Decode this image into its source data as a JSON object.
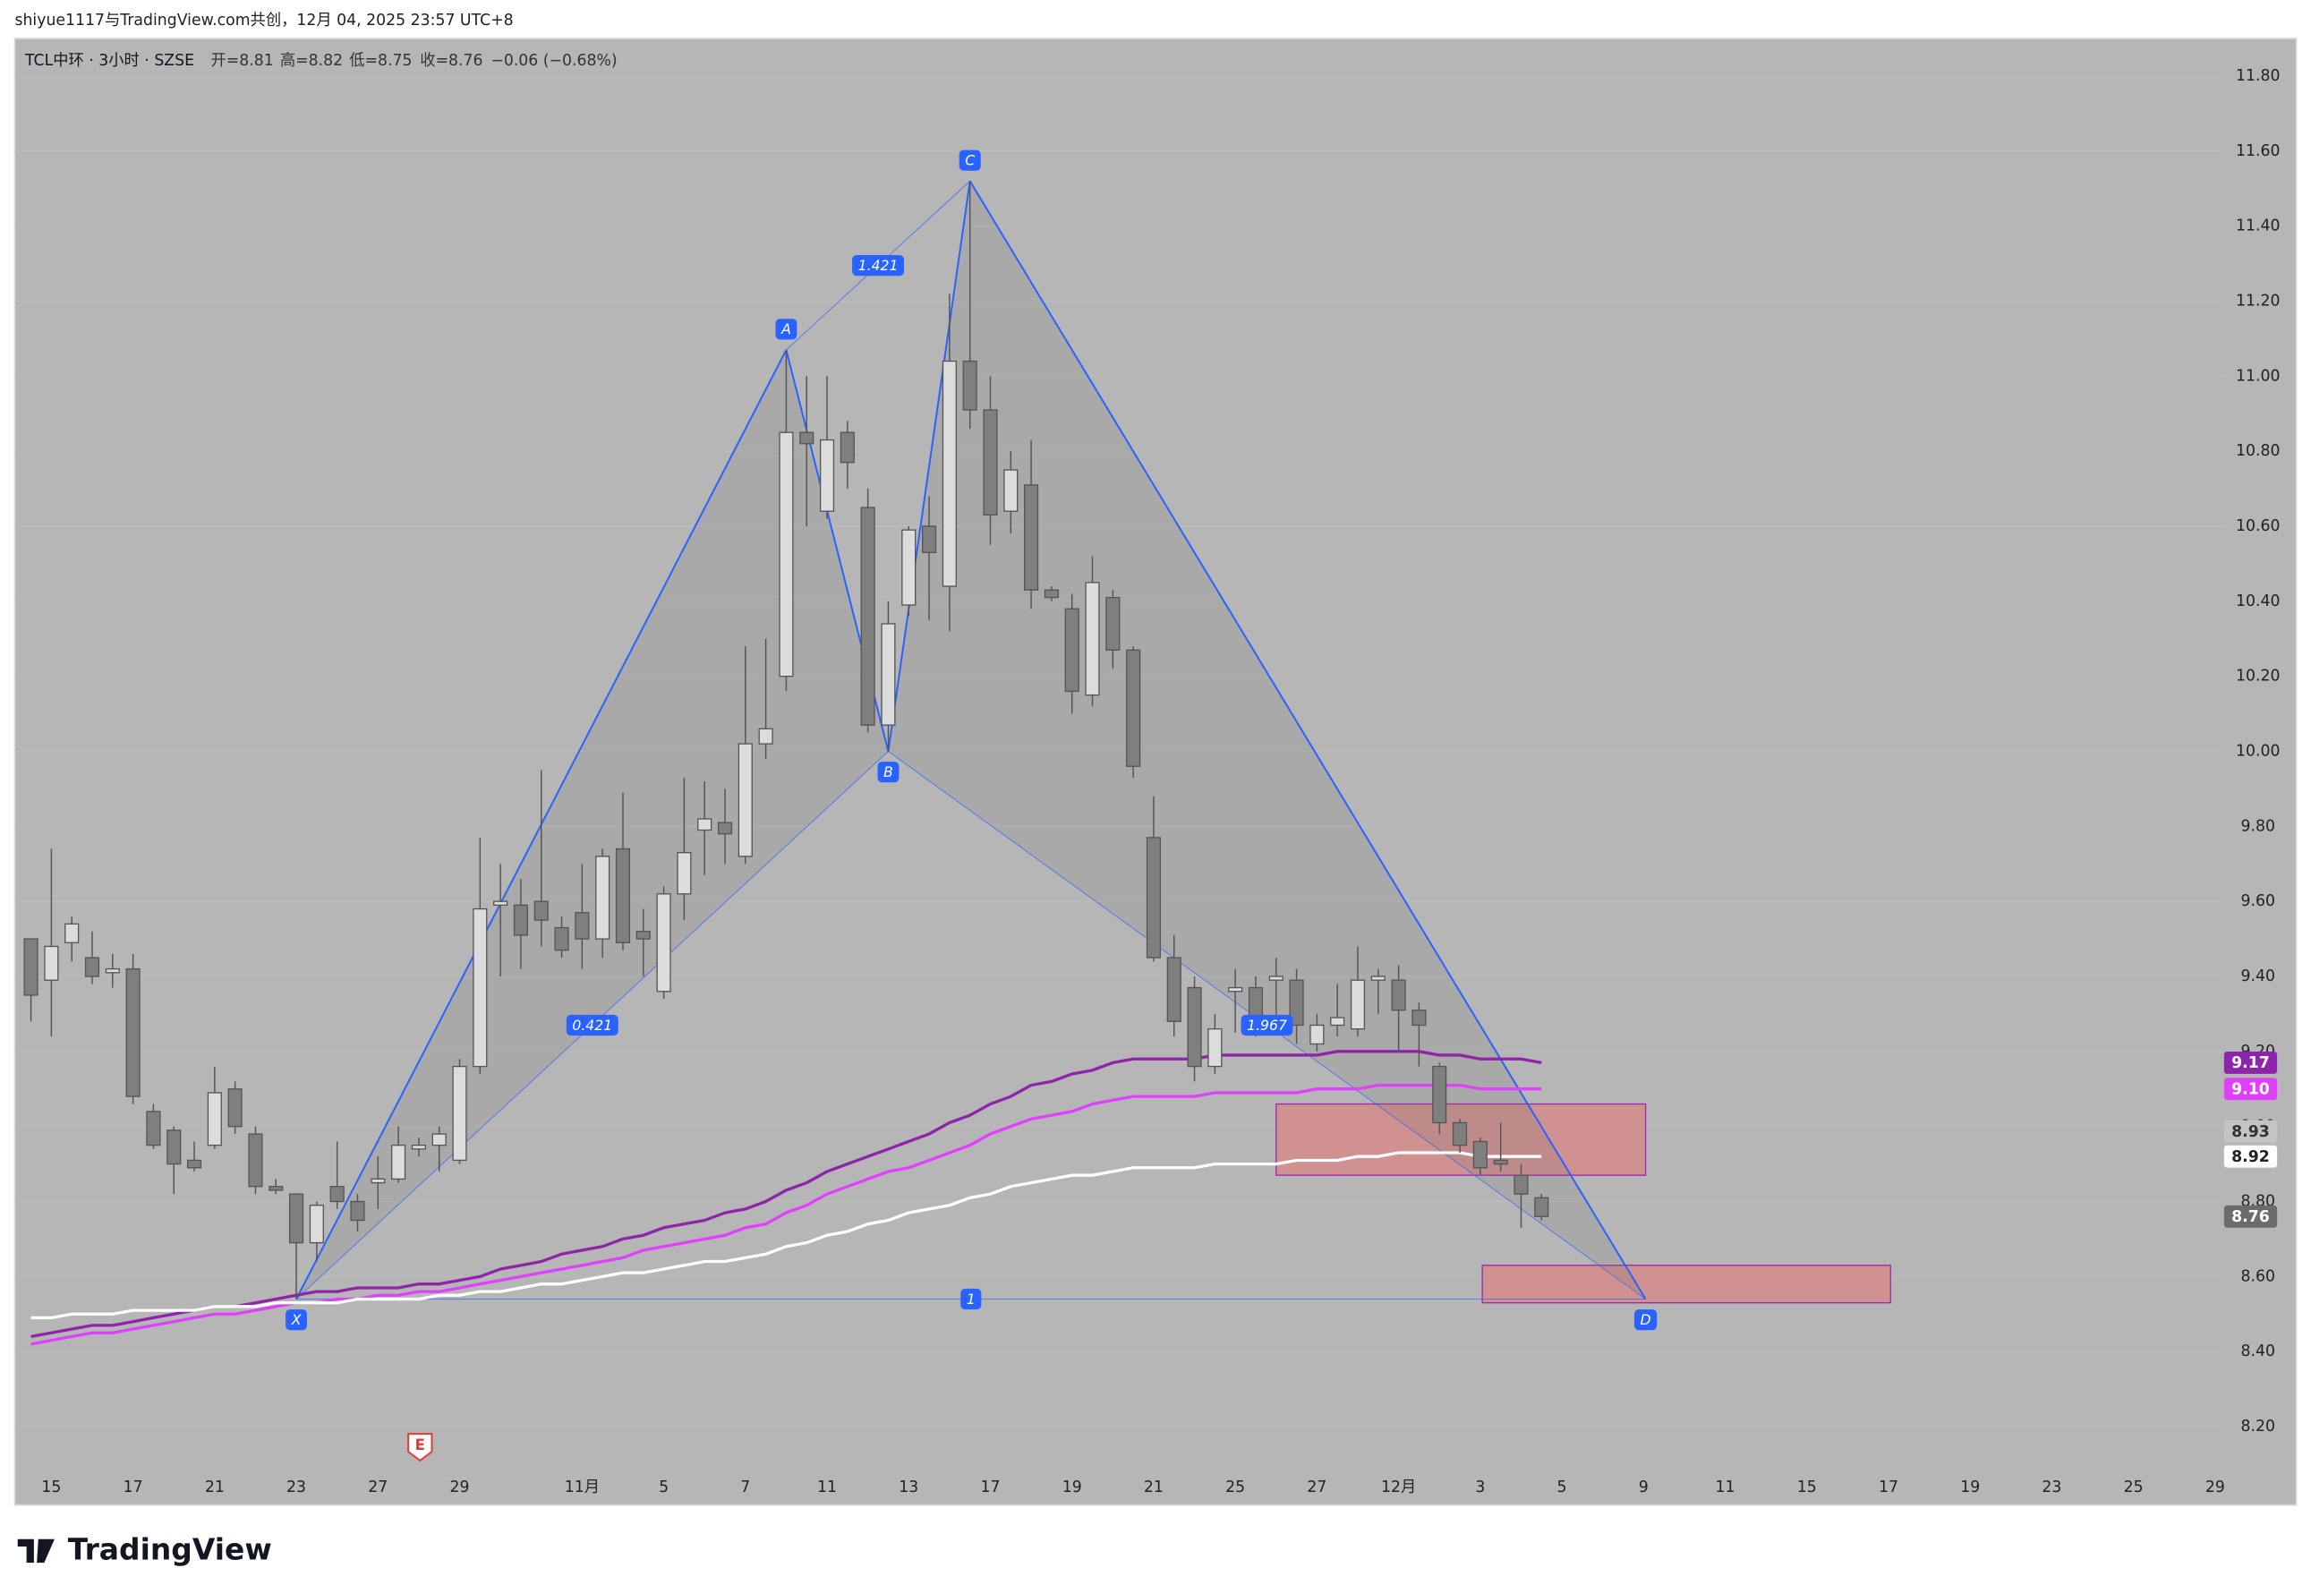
{
  "header": "shiyue1117与TradingView.com共创，12月 04, 2025 23:57 UTC+8",
  "logo": "TradingView",
  "chart_data": {
    "type": "candlestick",
    "legend": [
      "TCL中环 · 3小时 · SZSE",
      "开=8.81",
      "高=8.82",
      "低=8.75",
      "收=8.76",
      "−0.06 (−0.68%)"
    ],
    "up_color": "#dcdcdc",
    "down_color": "#7f7f7f",
    "open": [
      9.5,
      9.39,
      9.49,
      9.45,
      9.41,
      9.42,
      9.04,
      8.99,
      8.91,
      8.95,
      9.1,
      8.98,
      8.84,
      8.82,
      8.69,
      8.84,
      8.8,
      8.85,
      8.86,
      8.94,
      8.95,
      8.91,
      9.16,
      9.59,
      9.59,
      9.6,
      9.53,
      9.57,
      9.5,
      9.74,
      9.52,
      9.36,
      9.62,
      9.79,
      9.81,
      9.72,
      10.02,
      10.2,
      10.85,
      10.64,
      10.85,
      10.65,
      10.07,
      10.39,
      10.6,
      10.44,
      11.04,
      10.91,
      10.64,
      10.71,
      10.43,
      10.38,
      10.15,
      10.41,
      10.27,
      9.77,
      9.45,
      9.37,
      9.16,
      9.36,
      9.37,
      9.39,
      9.39,
      9.22,
      9.27,
      9.26,
      9.39,
      9.39,
      9.31,
      9.16,
      9.01,
      8.96,
      8.91,
      8.87,
      8.81
    ],
    "high": [
      9.5,
      9.74,
      9.56,
      9.52,
      9.46,
      9.46,
      9.06,
      9.0,
      8.96,
      9.16,
      9.12,
      9.0,
      8.86,
      8.82,
      8.8,
      8.96,
      8.82,
      8.92,
      9.0,
      8.97,
      9.0,
      9.18,
      9.77,
      9.7,
      9.66,
      9.95,
      9.56,
      9.7,
      9.74,
      9.89,
      9.58,
      9.64,
      9.93,
      9.92,
      9.9,
      10.28,
      10.3,
      11.07,
      11.0,
      11.0,
      10.88,
      10.7,
      10.4,
      10.6,
      10.68,
      11.22,
      11.52,
      11.0,
      10.8,
      10.83,
      10.44,
      10.42,
      10.52,
      10.43,
      10.28,
      9.88,
      9.51,
      9.4,
      9.3,
      9.42,
      9.4,
      9.45,
      9.42,
      9.3,
      9.38,
      9.48,
      9.42,
      9.43,
      9.33,
      9.17,
      9.02,
      8.97,
      9.01,
      8.9,
      8.82
    ],
    "low": [
      9.28,
      9.24,
      9.44,
      9.38,
      9.37,
      9.06,
      8.94,
      8.82,
      8.88,
      8.94,
      8.98,
      8.82,
      8.82,
      8.54,
      8.64,
      8.78,
      8.72,
      8.78,
      8.85,
      8.92,
      8.88,
      8.9,
      9.14,
      9.4,
      9.42,
      9.48,
      9.45,
      9.42,
      9.45,
      9.47,
      9.4,
      9.34,
      9.55,
      9.67,
      9.7,
      9.7,
      9.98,
      10.16,
      10.6,
      10.62,
      10.7,
      10.05,
      10.0,
      10.36,
      10.35,
      10.32,
      10.86,
      10.55,
      10.58,
      10.38,
      10.4,
      10.1,
      10.12,
      10.22,
      9.93,
      9.44,
      9.24,
      9.12,
      9.14,
      9.25,
      9.24,
      9.28,
      9.22,
      9.2,
      9.24,
      9.24,
      9.3,
      9.2,
      9.16,
      8.98,
      8.93,
      8.87,
      8.88,
      8.73,
      8.75
    ],
    "close": [
      9.35,
      9.48,
      9.54,
      9.4,
      9.42,
      9.08,
      8.95,
      8.9,
      8.89,
      9.09,
      9.0,
      8.84,
      8.83,
      8.69,
      8.79,
      8.8,
      8.75,
      8.86,
      8.95,
      8.95,
      8.98,
      9.16,
      9.58,
      9.6,
      9.51,
      9.55,
      9.47,
      9.5,
      9.72,
      9.49,
      9.5,
      9.62,
      9.73,
      9.82,
      9.78,
      10.02,
      10.06,
      10.85,
      10.82,
      10.83,
      10.77,
      10.07,
      10.34,
      10.59,
      10.53,
      11.04,
      10.91,
      10.63,
      10.75,
      10.43,
      10.41,
      10.16,
      10.45,
      10.27,
      9.96,
      9.45,
      9.28,
      9.16,
      9.26,
      9.37,
      9.27,
      9.4,
      9.27,
      9.27,
      9.29,
      9.39,
      9.4,
      9.31,
      9.27,
      9.01,
      8.95,
      8.89,
      8.9,
      8.82,
      8.76
    ],
    "lines": [
      {
        "color": "#8e24aa",
        "values": [
          8.44,
          8.45,
          8.46,
          8.47,
          8.47,
          8.48,
          8.49,
          8.5,
          8.51,
          8.52,
          8.52,
          8.53,
          8.54,
          8.55,
          8.56,
          8.56,
          8.57,
          8.57,
          8.57,
          8.58,
          8.58,
          8.59,
          8.6,
          8.62,
          8.63,
          8.64,
          8.66,
          8.67,
          8.68,
          8.7,
          8.71,
          8.73,
          8.74,
          8.75,
          8.77,
          8.78,
          8.8,
          8.83,
          8.85,
          8.88,
          8.9,
          8.92,
          8.94,
          8.96,
          8.98,
          9.01,
          9.03,
          9.06,
          9.08,
          9.11,
          9.12,
          9.14,
          9.15,
          9.17,
          9.18,
          9.18,
          9.18,
          9.18,
          9.19,
          9.19,
          9.19,
          9.19,
          9.19,
          9.19,
          9.2,
          9.2,
          9.2,
          9.2,
          9.2,
          9.19,
          9.19,
          9.18,
          9.18,
          9.18,
          9.17
        ]
      },
      {
        "color": "#e040fb",
        "values": [
          8.42,
          8.43,
          8.44,
          8.45,
          8.45,
          8.46,
          8.47,
          8.48,
          8.49,
          8.5,
          8.5,
          8.51,
          8.52,
          8.53,
          8.53,
          8.54,
          8.54,
          8.55,
          8.55,
          8.56,
          8.56,
          8.57,
          8.58,
          8.59,
          8.6,
          8.61,
          8.62,
          8.63,
          8.64,
          8.65,
          8.67,
          8.68,
          8.69,
          8.7,
          8.71,
          8.73,
          8.74,
          8.77,
          8.79,
          8.82,
          8.84,
          8.86,
          8.88,
          8.89,
          8.91,
          8.93,
          8.95,
          8.98,
          9.0,
          9.02,
          9.03,
          9.04,
          9.06,
          9.07,
          9.08,
          9.08,
          9.08,
          9.08,
          9.09,
          9.09,
          9.09,
          9.09,
          9.09,
          9.1,
          9.1,
          9.1,
          9.11,
          9.11,
          9.11,
          9.11,
          9.11,
          9.1,
          9.1,
          9.1,
          9.1
        ]
      },
      {
        "color": "#ffffff",
        "values": [
          8.49,
          8.49,
          8.5,
          8.5,
          8.5,
          8.51,
          8.51,
          8.51,
          8.51,
          8.52,
          8.52,
          8.52,
          8.53,
          8.53,
          8.53,
          8.53,
          8.54,
          8.54,
          8.54,
          8.54,
          8.55,
          8.55,
          8.56,
          8.56,
          8.57,
          8.58,
          8.58,
          8.59,
          8.6,
          8.61,
          8.61,
          8.62,
          8.63,
          8.64,
          8.64,
          8.65,
          8.66,
          8.68,
          8.69,
          8.71,
          8.72,
          8.74,
          8.75,
          8.77,
          8.78,
          8.79,
          8.81,
          8.82,
          8.84,
          8.85,
          8.86,
          8.87,
          8.87,
          8.88,
          8.89,
          8.89,
          8.89,
          8.89,
          8.9,
          8.9,
          8.9,
          8.9,
          8.91,
          8.91,
          8.91,
          8.92,
          8.92,
          8.93,
          8.93,
          8.93,
          8.93,
          8.92,
          8.92,
          8.92,
          8.92
        ]
      }
    ],
    "pattern": {
      "color": "#2962ff",
      "points": [
        {
          "label": "X",
          "price": 8.54
        },
        {
          "label": "A",
          "price": 11.07
        },
        {
          "label": "B",
          "price": 10.0
        },
        {
          "label": "C",
          "price": 11.52
        },
        {
          "label": "D",
          "price": 8.54
        }
      ],
      "ratios": [
        0.421,
        1.421,
        1.967,
        1
      ]
    },
    "zones": [
      {
        "top": 9.06,
        "bottom": 8.87
      },
      {
        "top": 8.63,
        "bottom": 8.53
      }
    ],
    "zone_color": "#e57373",
    "events": [
      "E"
    ],
    "ylim": [
      8.07,
      11.9
    ],
    "yticks": [
      {
        "value": 8.2,
        "label": "8.20"
      },
      {
        "value": 8.4,
        "label": "8.40"
      },
      {
        "value": 8.6,
        "label": "8.60"
      },
      {
        "value": 8.8,
        "label": "8.80"
      },
      {
        "value": 9.0,
        "label": "9.00"
      },
      {
        "value": 9.2,
        "label": "9.20"
      },
      {
        "value": 9.4,
        "label": "9.40"
      },
      {
        "value": 9.6,
        "label": "9.60"
      },
      {
        "value": 9.8,
        "label": "9.80"
      },
      {
        "value": 10.0,
        "label": "10.00"
      },
      {
        "value": 10.2,
        "label": "10.20"
      },
      {
        "value": 10.4,
        "label": "10.40"
      },
      {
        "value": 10.6,
        "label": "10.60"
      },
      {
        "value": 10.8,
        "label": "10.80"
      },
      {
        "value": 11.0,
        "label": "11.00"
      },
      {
        "value": 11.2,
        "label": "11.20"
      },
      {
        "value": 11.4,
        "label": "11.40"
      },
      {
        "value": 11.6,
        "label": "11.60"
      },
      {
        "value": 11.8,
        "label": "11.80"
      }
    ],
    "xticks": [
      "15",
      "17",
      "21",
      "23",
      "27",
      "29",
      "11月",
      "5",
      "7",
      "11",
      "13",
      "17",
      "19",
      "21",
      "25",
      "27",
      "12月",
      "3",
      "5",
      "9",
      "11",
      "15",
      "17",
      "19",
      "23",
      "25",
      "29"
    ],
    "price_badges": [
      {
        "value": 9.17,
        "label": "9.17",
        "bg": "#8e24aa",
        "fg": "#ffffff"
      },
      {
        "value": 9.1,
        "label": "9.10",
        "bg": "#e040fb",
        "fg": "#ffffff"
      },
      {
        "value": 8.93,
        "label": "8.93",
        "bg": "#c4c4c4",
        "fg": "#333333"
      },
      {
        "value": 8.92,
        "label": "8.92",
        "bg": "#ffffff",
        "fg": "#222222"
      },
      {
        "value": 8.76,
        "label": "8.76",
        "bg": "#6b6b6b",
        "fg": "#ffffff"
      }
    ],
    "grid": true
  }
}
